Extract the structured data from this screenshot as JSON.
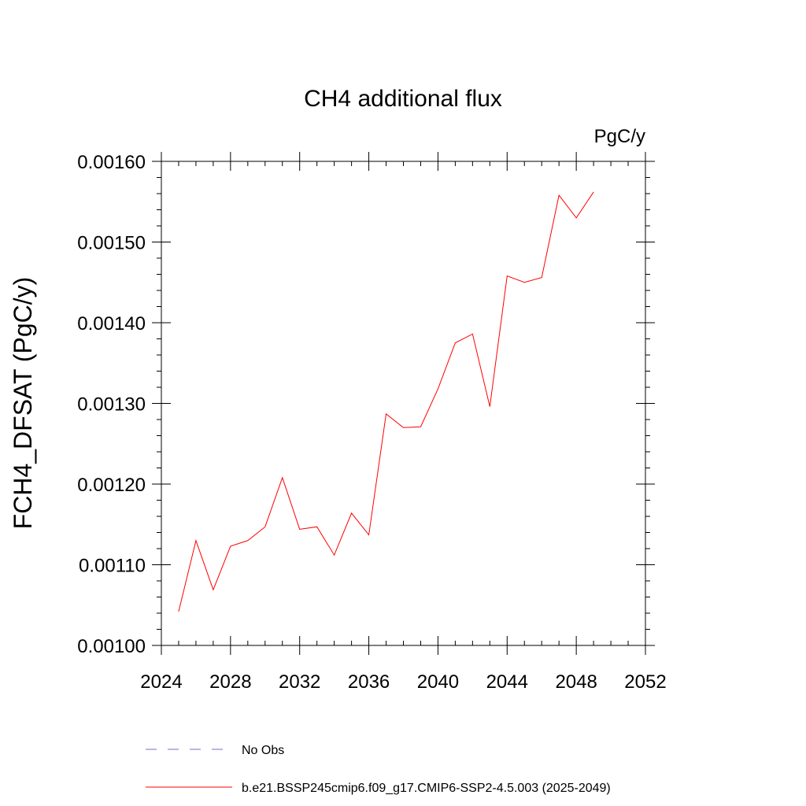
{
  "chart_data": {
    "type": "line",
    "title": "CH4 additional flux",
    "units": "PgC/y",
    "ylabel": "FCH4_DFSAT  (PgC/y)",
    "xlabel": "",
    "xlim": [
      2024,
      2052
    ],
    "ylim": [
      0.001,
      0.0016
    ],
    "x_ticks": [
      2024,
      2028,
      2032,
      2036,
      2040,
      2044,
      2048,
      2052
    ],
    "x_tick_labels": [
      "2024",
      "2028",
      "2032",
      "2036",
      "2040",
      "2044",
      "2048",
      "2052"
    ],
    "y_ticks": [
      0.001,
      0.0011,
      0.0012,
      0.0013,
      0.0014,
      0.0015,
      0.0016
    ],
    "y_tick_labels": [
      "0.00100",
      "0.00110",
      "0.00120",
      "0.00130",
      "0.00140",
      "0.00150",
      "0.00160"
    ],
    "grid": false,
    "legend_position": "bottom",
    "series": [
      {
        "name": "b.e21.BSSP245cmip6.f09_g17.CMIP6-SSP2-4.5.003 (2025-2049)",
        "color": "#ff0000",
        "style": "solid",
        "x": [
          2025,
          2026,
          2027,
          2028,
          2029,
          2030,
          2031,
          2032,
          2033,
          2034,
          2035,
          2036,
          2037,
          2038,
          2039,
          2040,
          2041,
          2042,
          2043,
          2044,
          2045,
          2046,
          2047,
          2048,
          2049
        ],
        "y": [
          0.001042,
          0.00113,
          0.001069,
          0.001123,
          0.00113,
          0.001147,
          0.001208,
          0.001144,
          0.001147,
          0.001112,
          0.001164,
          0.001137,
          0.001287,
          0.00127,
          0.001271,
          0.001318,
          0.001375,
          0.001386,
          0.001296,
          0.001458,
          0.00145,
          0.001456,
          0.001558,
          0.00153,
          0.001562
        ]
      }
    ],
    "legend": [
      {
        "label": "No Obs",
        "color": "#7b68c8",
        "style": "dashed"
      },
      {
        "label": "b.e21.BSSP245cmip6.f09_g17.CMIP6-SSP2-4.5.003 (2025-2049)",
        "color": "#ff0000",
        "style": "solid"
      }
    ]
  }
}
